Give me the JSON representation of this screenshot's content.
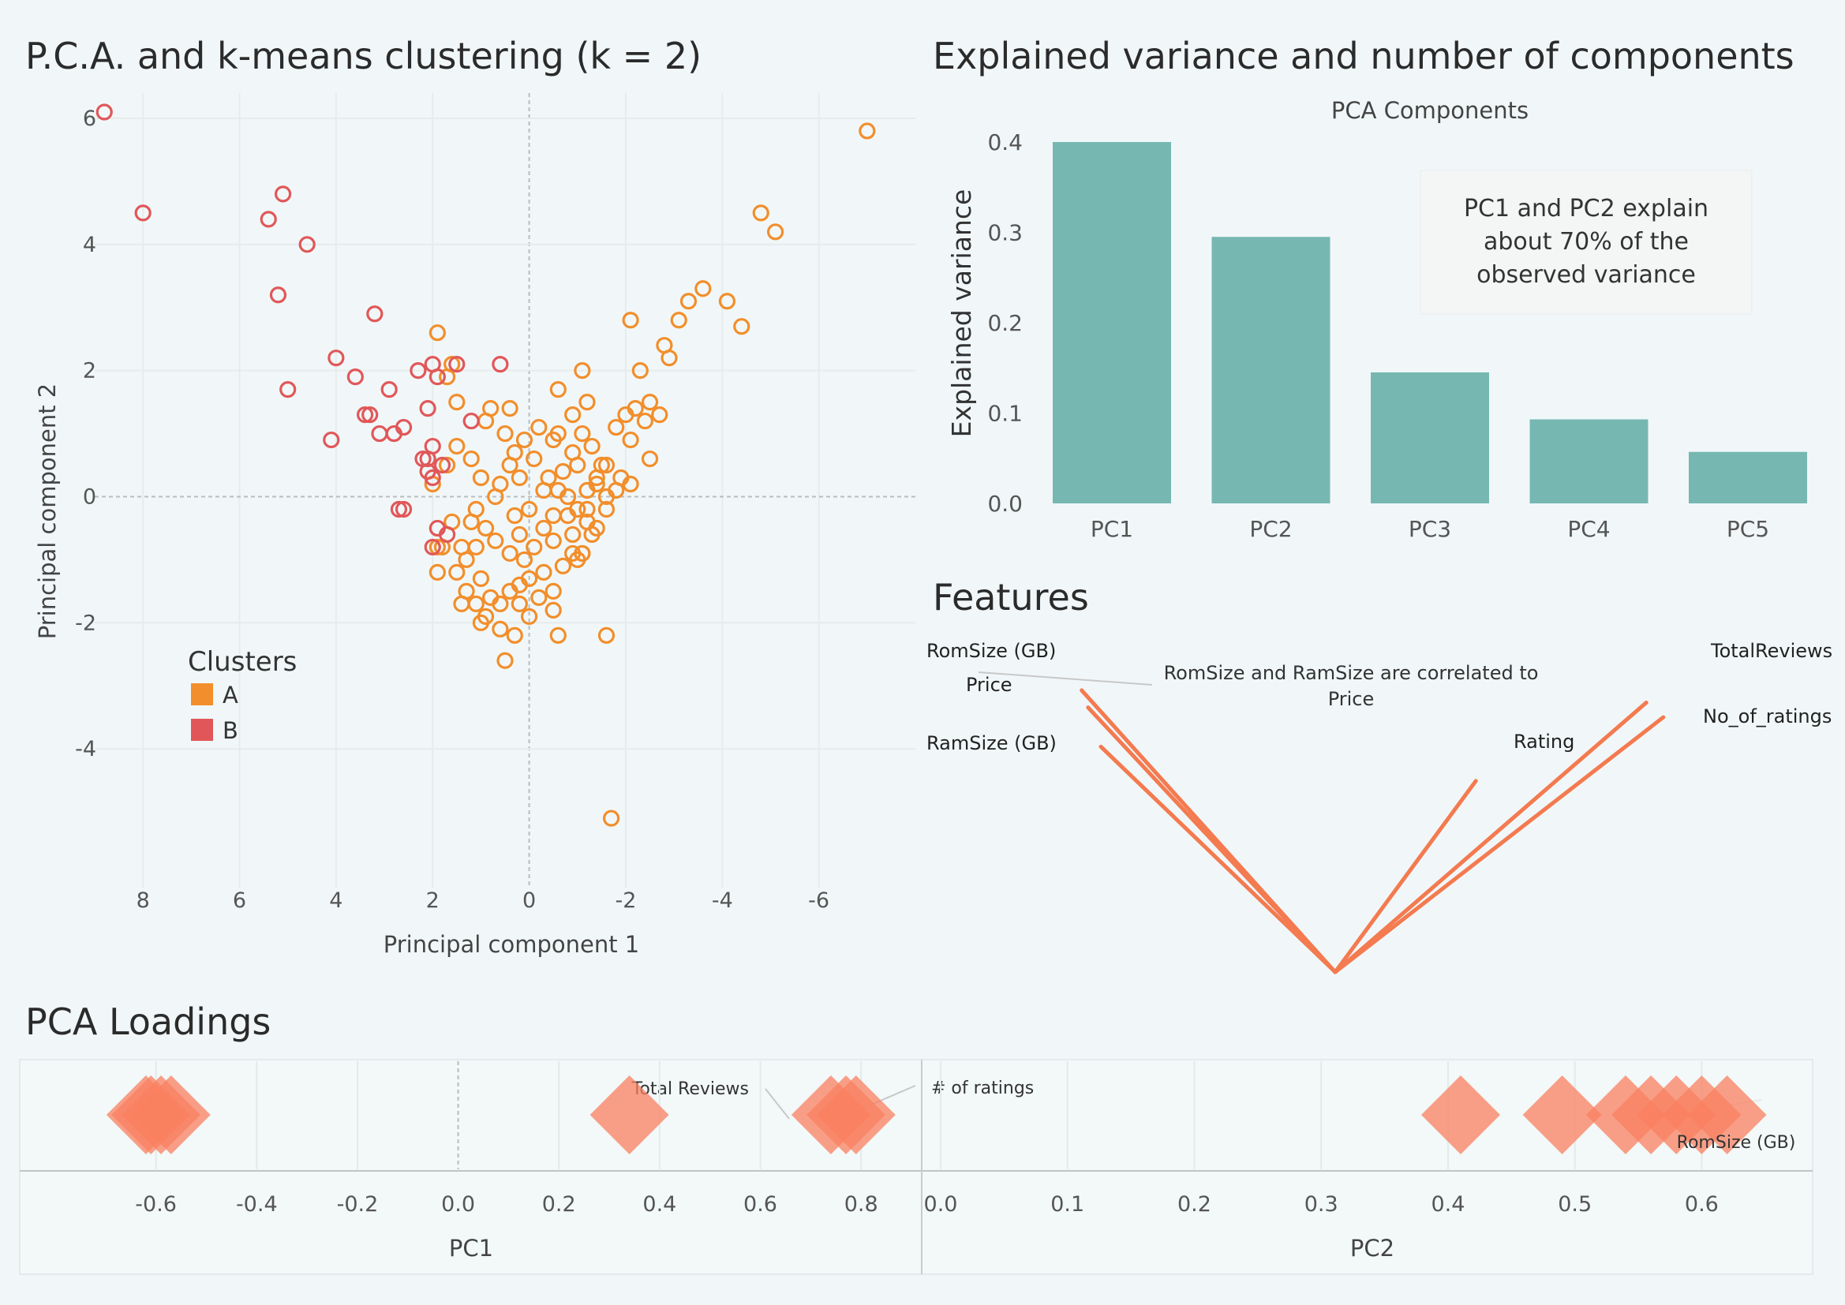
{
  "titles": {
    "scatter": "P.C.A. and k-means clustering (k = 2)",
    "variance": "Explained variance and number of components",
    "features": "Features",
    "loadings": "PCA Loadings"
  },
  "colors": {
    "cluster_a": "#f28e2b",
    "cluster_b": "#e15759",
    "bar": "#76b7b2",
    "vector": "#f47a50",
    "loading": "#fa8060",
    "background": "#f1f7f8"
  },
  "chart_data": [
    {
      "id": "scatter",
      "type": "scatter",
      "title": "P.C.A. and k-means clustering (k = 2)",
      "xlabel": "Principal component 1",
      "ylabel": "Principal component 2",
      "x_reversed": true,
      "xlim": [
        9,
        -8
      ],
      "ylim": [
        -6.2,
        6.4
      ],
      "xticks": [
        8,
        6,
        4,
        2,
        0,
        -2,
        -4,
        -6
      ],
      "yticks": [
        6,
        4,
        2,
        0,
        -2,
        -4
      ],
      "legend_title": "Clusters",
      "series": [
        {
          "name": "A",
          "color": "#f28e2b",
          "points": [
            [
              -7,
              5.8
            ],
            [
              -4.8,
              4.5
            ],
            [
              -5.1,
              4.2
            ],
            [
              -3.6,
              3.3
            ],
            [
              -3.3,
              3.1
            ],
            [
              -4.1,
              3.1
            ],
            [
              -4.4,
              2.7
            ],
            [
              -2.1,
              2.8
            ],
            [
              -3.1,
              2.8
            ],
            [
              -2.8,
              2.4
            ],
            [
              -2.9,
              2.2
            ],
            [
              -1.1,
              2.0
            ],
            [
              -2.3,
              2.0
            ],
            [
              -2.2,
              1.4
            ],
            [
              -2.5,
              1.5
            ],
            [
              -2.7,
              1.3
            ],
            [
              -2.4,
              1.2
            ],
            [
              -2.0,
              1.3
            ],
            [
              -1.8,
              1.1
            ],
            [
              -2.1,
              0.9
            ],
            [
              -2.5,
              0.6
            ],
            [
              -2.1,
              0.2
            ],
            [
              -1.9,
              0.3
            ],
            [
              -1.5,
              0.5
            ],
            [
              -1.3,
              0.8
            ],
            [
              -1.1,
              1.0
            ],
            [
              -0.9,
              1.3
            ],
            [
              -1.4,
              0.2
            ],
            [
              -1.2,
              0.1
            ],
            [
              -0.7,
              0.4
            ],
            [
              -0.5,
              0.9
            ],
            [
              -0.2,
              1.1
            ],
            [
              0.3,
              0.7
            ],
            [
              0.5,
              1.0
            ],
            [
              0.8,
              1.4
            ],
            [
              0.4,
              1.4
            ],
            [
              -0.1,
              0.6
            ],
            [
              0.2,
              0.3
            ],
            [
              -0.3,
              0.1
            ],
            [
              -0.8,
              0.0
            ],
            [
              -1.0,
              -0.2
            ],
            [
              -1.2,
              -0.4
            ],
            [
              -0.9,
              -0.6
            ],
            [
              -1.1,
              -0.9
            ],
            [
              -0.5,
              -0.3
            ],
            [
              -0.3,
              -0.5
            ],
            [
              0.0,
              -0.2
            ],
            [
              0.2,
              -0.6
            ],
            [
              0.4,
              -0.9
            ],
            [
              0.7,
              -0.7
            ],
            [
              0.9,
              -0.5
            ],
            [
              1.1,
              -0.2
            ],
            [
              1.2,
              -0.4
            ],
            [
              1.4,
              -0.8
            ],
            [
              1.5,
              -1.2
            ],
            [
              1.3,
              -1.5
            ],
            [
              1.1,
              -1.7
            ],
            [
              0.9,
              -1.9
            ],
            [
              0.6,
              -2.1
            ],
            [
              0.3,
              -2.2
            ],
            [
              0.5,
              -2.6
            ],
            [
              0.0,
              -1.9
            ],
            [
              -0.2,
              -1.6
            ],
            [
              -0.5,
              -1.8
            ],
            [
              -0.6,
              -2.2
            ],
            [
              -0.5,
              -1.5
            ],
            [
              -0.3,
              -1.2
            ],
            [
              0.1,
              -1.0
            ],
            [
              0.0,
              -1.3
            ],
            [
              0.2,
              -1.4
            ],
            [
              0.4,
              -1.5
            ],
            [
              -1.0,
              -1.0
            ],
            [
              1.6,
              -0.4
            ],
            [
              1.8,
              -0.8
            ],
            [
              2.0,
              0.2
            ],
            [
              1.7,
              0.5
            ],
            [
              1.5,
              0.8
            ],
            [
              1.9,
              2.6
            ],
            [
              1.6,
              2.1
            ],
            [
              1.5,
              1.5
            ],
            [
              1.2,
              0.6
            ],
            [
              1.0,
              0.3
            ],
            [
              0.7,
              0.0
            ],
            [
              0.6,
              0.2
            ],
            [
              1.9,
              -1.2
            ],
            [
              1.3,
              -1.0
            ],
            [
              1.1,
              -0.8
            ],
            [
              1.9,
              -0.8
            ],
            [
              -1.6,
              -2.2
            ],
            [
              -0.9,
              -0.9
            ],
            [
              -1.6,
              0.5
            ],
            [
              -1.2,
              1.5
            ],
            [
              -0.6,
              1.7
            ],
            [
              -0.5,
              -0.7
            ],
            [
              -0.8,
              -0.3
            ],
            [
              -1.3,
              -0.6
            ],
            [
              -1.6,
              0.0
            ],
            [
              -0.4,
              0.3
            ],
            [
              0.9,
              1.2
            ],
            [
              1.7,
              1.9
            ],
            [
              -1.7,
              -5.1
            ],
            [
              -1.1,
              -0.9
            ],
            [
              0.8,
              -1.6
            ],
            [
              1.0,
              -1.3
            ],
            [
              0.6,
              -1.7
            ],
            [
              1.4,
              -1.7
            ],
            [
              1.0,
              -2.0
            ],
            [
              0.2,
              -1.7
            ],
            [
              -0.7,
              -1.1
            ],
            [
              -0.1,
              -0.8
            ],
            [
              0.3,
              -0.3
            ],
            [
              -0.9,
              0.7
            ],
            [
              -0.6,
              1.0
            ],
            [
              0.1,
              0.9
            ],
            [
              0.4,
              0.5
            ],
            [
              -1.2,
              -0.2
            ],
            [
              -1.4,
              -0.5
            ],
            [
              -1.0,
              0.5
            ],
            [
              -0.6,
              0.1
            ],
            [
              -1.4,
              0.3
            ],
            [
              -1.6,
              -0.2
            ],
            [
              -1.8,
              0.1
            ]
          ]
        },
        {
          "name": "B",
          "color": "#e15759",
          "points": [
            [
              8.8,
              6.1
            ],
            [
              8,
              4.5
            ],
            [
              5.1,
              4.8
            ],
            [
              5.4,
              4.4
            ],
            [
              4.6,
              4.0
            ],
            [
              5.2,
              3.2
            ],
            [
              3.2,
              2.9
            ],
            [
              4.0,
              2.2
            ],
            [
              3.6,
              1.9
            ],
            [
              2.9,
              1.7
            ],
            [
              5.0,
              1.7
            ],
            [
              2.0,
              2.1
            ],
            [
              1.9,
              1.9
            ],
            [
              0.6,
              2.1
            ],
            [
              3.3,
              1.3
            ],
            [
              3.1,
              1.0
            ],
            [
              3.4,
              1.3
            ],
            [
              4.1,
              0.9
            ],
            [
              2.6,
              1.1
            ],
            [
              2.8,
              1.0
            ],
            [
              2.1,
              1.4
            ],
            [
              1.2,
              1.2
            ],
            [
              2.0,
              0.8
            ],
            [
              2.2,
              0.6
            ],
            [
              1.8,
              0.5
            ],
            [
              2.1,
              0.4
            ],
            [
              2.0,
              0.3
            ],
            [
              2.7,
              -0.2
            ],
            [
              2.6,
              -0.2
            ],
            [
              1.9,
              -0.5
            ],
            [
              2.0,
              -0.8
            ],
            [
              1.7,
              -0.6
            ],
            [
              1.5,
              2.1
            ],
            [
              2.3,
              2.0
            ],
            [
              2.1,
              0.6
            ]
          ]
        }
      ]
    },
    {
      "id": "variance",
      "type": "bar",
      "title": "PCA Components",
      "ylabel": "Explained variance",
      "ylim": [
        0,
        0.4
      ],
      "yticks": [
        "0.0",
        "0.1",
        "0.2",
        "0.3",
        "0.4"
      ],
      "categories": [
        "PC1",
        "PC2",
        "PC3",
        "PC4",
        "PC5"
      ],
      "values": [
        0.4,
        0.295,
        0.145,
        0.093,
        0.057
      ],
      "annotation": "PC1 and PC2 explain about 70% of the observed variance"
    },
    {
      "id": "features",
      "type": "line",
      "title": "Features",
      "note": {
        "t1": "RomSize",
        "t2": " and ",
        "t3": "RamSize",
        "t4": " are correlated to",
        "t5": "Price"
      },
      "vectors": [
        {
          "label": "RomSize (GB)",
          "dx": -0.595,
          "dy": 0.575
        },
        {
          "label": "Price",
          "dx": -0.58,
          "dy": 0.54
        },
        {
          "label": "RamSize (GB)",
          "dx": -0.55,
          "dy": 0.46
        },
        {
          "label": "Rating",
          "dx": 0.33,
          "dy": 0.39
        },
        {
          "label": "TotalReviews",
          "dx": 0.73,
          "dy": 0.55
        },
        {
          "label": "No_of_ratings",
          "dx": 0.77,
          "dy": 0.52
        }
      ]
    },
    {
      "id": "loadings",
      "type": "scatter",
      "title": "PCA Loadings",
      "pc1": {
        "xlabel": "PC1",
        "xlim": [
          -0.8,
          0.9
        ],
        "xticks": [
          "-0.6",
          "-0.4",
          "-0.2",
          "0.0",
          "0.2",
          "0.4",
          "0.6",
          "0.8"
        ],
        "values": [
          -0.62,
          -0.61,
          -0.59,
          -0.57,
          0.34,
          0.74,
          0.77,
          0.79
        ],
        "labels": [
          "Total Reviews",
          "# of ratings"
        ]
      },
      "pc2": {
        "xlabel": "PC2",
        "xlim": [
          0,
          0.68
        ],
        "xticks": [
          "0.0",
          "0.1",
          "0.2",
          "0.3",
          "0.4",
          "0.5",
          "0.6"
        ],
        "values": [
          0.41,
          0.49,
          0.54,
          0.56,
          0.58,
          0.6,
          0.62
        ],
        "labels": [
          "RomSize (GB)"
        ]
      }
    }
  ]
}
